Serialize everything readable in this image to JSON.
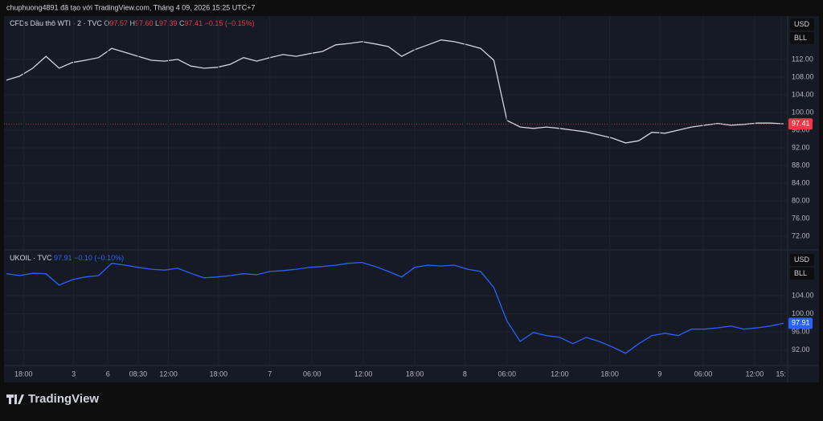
{
  "header": {
    "caption": "chuphuong4891 đã tạo với TradingView.com, Tháng 4 09, 2026 15:25 UTC+7"
  },
  "footer": {
    "brand": "TradingView"
  },
  "chart_data": [
    {
      "type": "line",
      "legend_name": "CFDs Dầu thô WTI · 2 · TVC",
      "ohlc": [
        {
          "label": "O",
          "value": "97.57"
        },
        {
          "label": "H",
          "value": "97.60"
        },
        {
          "label": "L",
          "value": "97.39"
        },
        {
          "label": "C",
          "value": "97.41"
        }
      ],
      "change": "−0.15 (−0.15%)",
      "units": [
        "USD",
        "BLL"
      ],
      "series": [
        {
          "name": "CFDs Dầu thô WTI",
          "color": "#d1d4dc",
          "values": [
            107.3,
            108.2,
            110,
            112.7,
            110,
            111.3,
            111.8,
            112.4,
            114.5,
            113.6,
            112.7,
            111.8,
            111.6,
            112,
            110.5,
            110,
            110.2,
            110.9,
            112.4,
            111.6,
            112.4,
            113.1,
            112.7,
            113.3,
            113.8,
            115.3,
            115.6,
            116,
            115.5,
            114.9,
            112.7,
            114.2,
            115.3,
            116.4,
            116,
            115.3,
            114.5,
            111.8,
            98.2,
            96.7,
            96.4,
            96.7,
            96.4,
            96,
            95.6,
            94.9,
            94.2,
            93.1,
            93.6,
            95.5,
            95.3,
            96,
            96.7,
            97.1,
            97.5,
            97.1,
            97.3,
            97.6,
            97.6,
            97.41
          ]
        }
      ],
      "last_color": "#f23645",
      "xlim": [
        0,
        59
      ],
      "ylim": [
        69.1,
        121.8
      ],
      "yticks": [
        {
          "value": 72,
          "label": "72.00"
        },
        {
          "value": 76,
          "label": "76.00"
        },
        {
          "value": 80,
          "label": "80.00"
        },
        {
          "value": 84,
          "label": "84.00"
        },
        {
          "value": 88,
          "label": "88.00"
        },
        {
          "value": 92,
          "label": "92.00"
        },
        {
          "value": 96,
          "label": "96.00"
        },
        {
          "value": 100,
          "label": "100.00"
        },
        {
          "value": 104,
          "label": "104.00"
        },
        {
          "value": 108,
          "label": "108.00"
        },
        {
          "value": 112,
          "label": "112.00"
        }
      ],
      "grid": true
    },
    {
      "type": "line",
      "legend_name": "UKOIL · TVC",
      "legend_value": "97.91",
      "change": "−0.10 (−0.10%)",
      "units": [
        "USD",
        "BLL"
      ],
      "series": [
        {
          "name": "UKOIL",
          "color": "#2962ff",
          "values": [
            108.8,
            108.4,
            108.9,
            108.8,
            106.3,
            107.5,
            108.1,
            108.4,
            111.1,
            110.7,
            110.2,
            109.8,
            109.6,
            110,
            108.9,
            107.9,
            108.1,
            108.4,
            108.8,
            108.6,
            109.3,
            109.5,
            109.8,
            110.2,
            110.4,
            110.7,
            111.1,
            111.3,
            110.4,
            109.3,
            108.1,
            110.2,
            110.7,
            110.5,
            110.7,
            109.8,
            109.3,
            105.8,
            98.4,
            93.9,
            95.9,
            95.2,
            94.8,
            93.4,
            94.8,
            93.9,
            92.7,
            91.3,
            93.4,
            95.2,
            95.7,
            95.2,
            96.6,
            96.6,
            96.9,
            97.3,
            96.6,
            96.9,
            97.3,
            97.91
          ]
        }
      ],
      "last_color": "#2962ff",
      "xlim": [
        0,
        59
      ],
      "ylim": [
        88.6,
        113.7
      ],
      "yticks": [
        {
          "value": 92,
          "label": "92.00"
        },
        {
          "value": 96,
          "label": "96.00"
        },
        {
          "value": 100,
          "label": "100.00"
        },
        {
          "value": 104,
          "label": "104.00"
        }
      ],
      "xticks": [
        {
          "value": 1.3,
          "label": "18:00"
        },
        {
          "value": 5.1,
          "label": "3"
        },
        {
          "value": 7.7,
          "label": "6"
        },
        {
          "value": 10,
          "label": "08:30"
        },
        {
          "value": 12.3,
          "label": "12:00"
        },
        {
          "value": 16.1,
          "label": "18:00"
        },
        {
          "value": 20,
          "label": "7"
        },
        {
          "value": 23.2,
          "label": "06:00"
        },
        {
          "value": 27.1,
          "label": "12:00"
        },
        {
          "value": 31,
          "label": "18:00"
        },
        {
          "value": 34.8,
          "label": "8"
        },
        {
          "value": 38,
          "label": "06:00"
        },
        {
          "value": 42,
          "label": "12:00"
        },
        {
          "value": 45.8,
          "label": "18:00"
        },
        {
          "value": 49.6,
          "label": "9"
        },
        {
          "value": 52.9,
          "label": "06:00"
        },
        {
          "value": 56.8,
          "label": "12:00"
        },
        {
          "value": 58.8,
          "label": "15:"
        }
      ],
      "grid": true
    }
  ]
}
